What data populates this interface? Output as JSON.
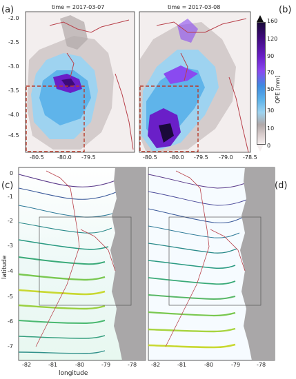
{
  "panel_labels": {
    "a": "(a)",
    "b": "(b)",
    "c": "(c)",
    "d": "(d)"
  },
  "top_left": {
    "title": "time = 2017-03-07",
    "y_ticks": [
      "-2.0",
      "-2.5",
      "-3.0",
      "-3.5",
      "-4.0",
      "-4.5"
    ],
    "x_ticks": [
      "-80.5",
      "-80.0",
      "-79.5"
    ]
  },
  "top_right": {
    "title": "time = 2017-03-08",
    "x_ticks": [
      "-80.5",
      "-80.0",
      "-79.5",
      "-79.0",
      "-78.5"
    ]
  },
  "colorbar": {
    "label": "QPE [mm]",
    "ticks": [
      "160",
      "120",
      "90",
      "70",
      "50",
      "30",
      "10",
      "0"
    ],
    "colors": [
      "#1a0a3a",
      "#3d0a7a",
      "#6a1fc8",
      "#8a4af0",
      "#3d8be0",
      "#5fb4ea",
      "#9ed3f0",
      "#b0a8a8",
      "#d8cccc",
      "#f4eeee"
    ]
  },
  "bottom": {
    "y_label": "latitude",
    "x_label": "longitude",
    "y_ticks": [
      "0",
      "-1",
      "-2",
      "-3",
      "-4",
      "-5",
      "-6",
      "-7"
    ],
    "x_ticks": [
      "-82",
      "-81",
      "-80",
      "-79",
      "-78"
    ]
  },
  "colors": {
    "land": "#a9a7a8",
    "border": "#b8404a",
    "box": "#b83a2a",
    "ocean_low": "#f2fbff"
  }
}
